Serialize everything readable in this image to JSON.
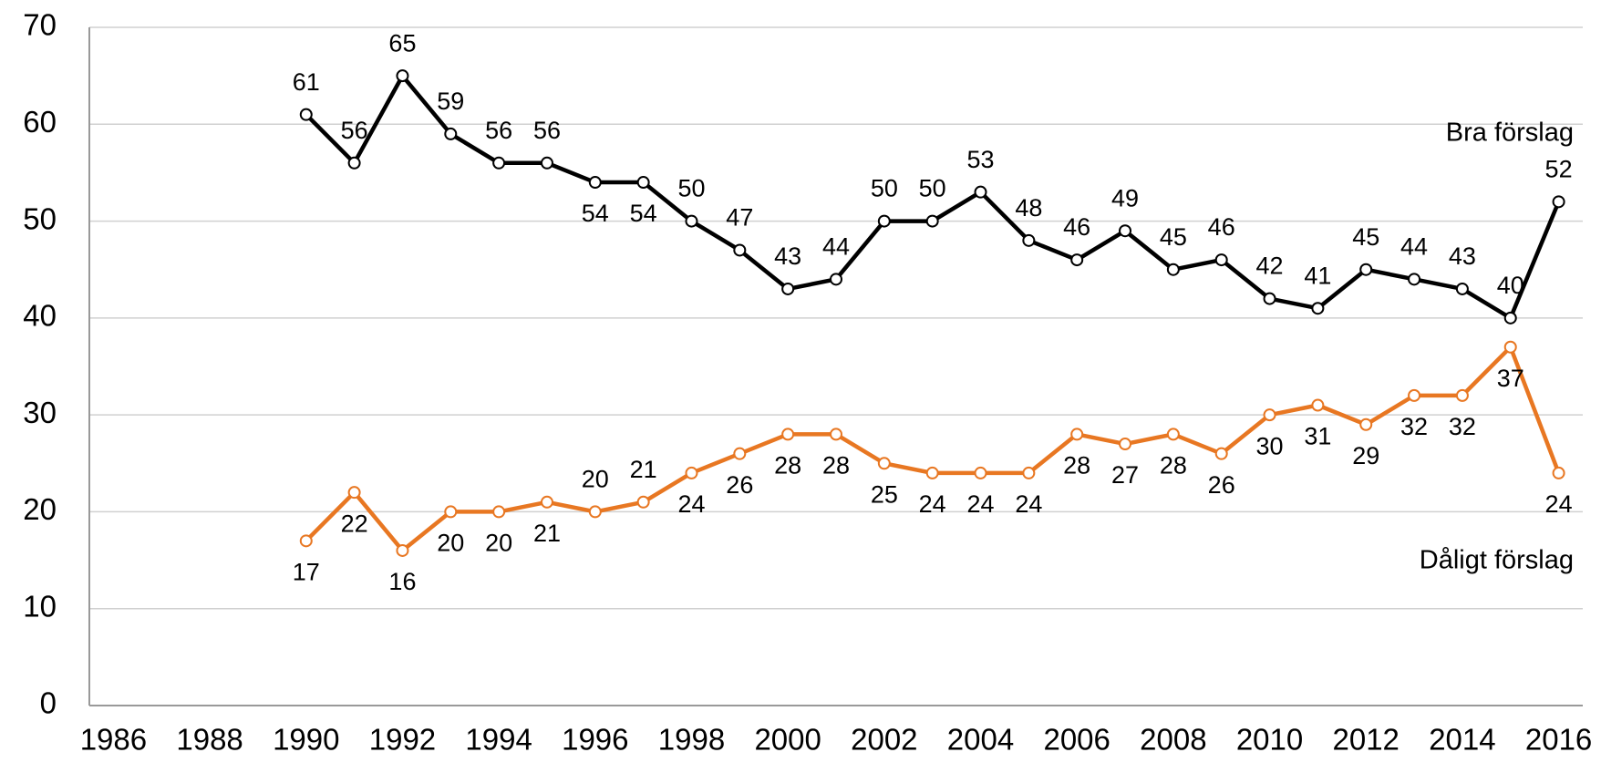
{
  "chart_data": {
    "type": "line",
    "x": [
      1990,
      1991,
      1992,
      1993,
      1994,
      1995,
      1996,
      1997,
      1998,
      1999,
      2000,
      2001,
      2002,
      2003,
      2004,
      2005,
      2006,
      2007,
      2008,
      2009,
      2010,
      2011,
      2012,
      2013,
      2014,
      2015,
      2016
    ],
    "series": [
      {
        "name": "Bra förslag",
        "color": "#000000",
        "values": [
          61,
          56,
          65,
          59,
          56,
          56,
          54,
          54,
          50,
          47,
          43,
          44,
          50,
          50,
          53,
          48,
          46,
          49,
          45,
          46,
          42,
          41,
          45,
          44,
          43,
          40,
          52
        ]
      },
      {
        "name": "Dåligt förslag",
        "color": "#e87722",
        "values": [
          17,
          22,
          16,
          20,
          20,
          21,
          20,
          21,
          24,
          26,
          28,
          28,
          25,
          24,
          24,
          24,
          28,
          27,
          28,
          26,
          30,
          31,
          29,
          32,
          32,
          37,
          24
        ]
      }
    ],
    "xlim": [
      1985.5,
      2016.5
    ],
    "xticks": [
      1986,
      1988,
      1990,
      1992,
      1994,
      1996,
      1998,
      2000,
      2002,
      2004,
      2006,
      2008,
      2010,
      2012,
      2014,
      2016
    ],
    "ylim": [
      0,
      70
    ],
    "yticks": [
      0,
      10,
      20,
      30,
      40,
      50,
      60,
      70
    ],
    "grid": true
  }
}
